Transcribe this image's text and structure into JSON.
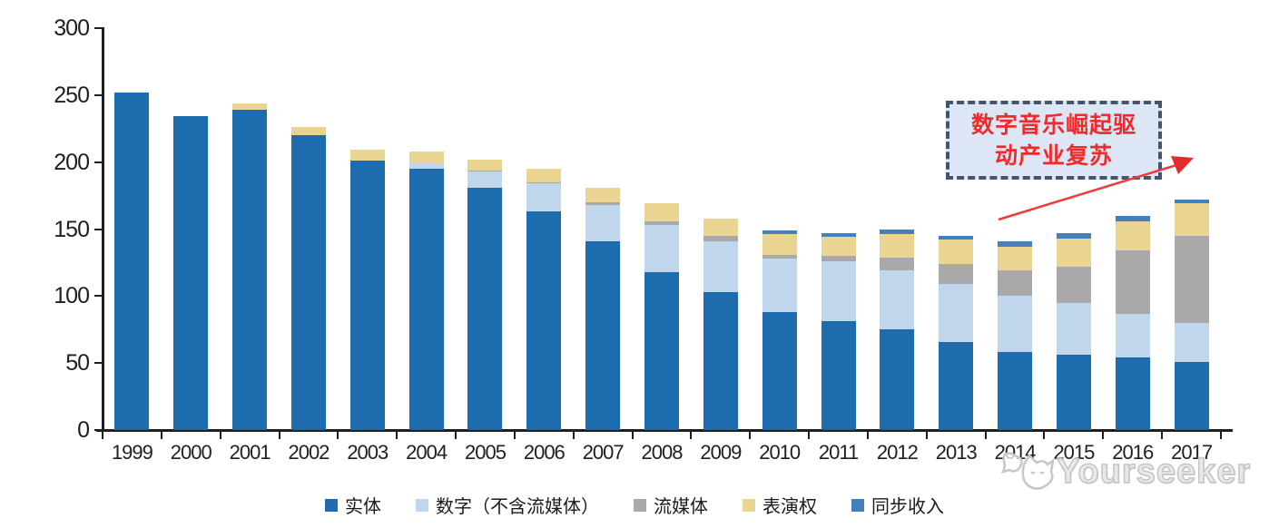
{
  "chart_data": {
    "type": "bar",
    "stacked": true,
    "title": "",
    "xlabel": "",
    "ylabel": "",
    "ylim": [
      0,
      300
    ],
    "y_ticks": [
      0,
      50,
      100,
      150,
      200,
      250,
      300
    ],
    "grid": false,
    "legend_position": "bottom",
    "categories": [
      "1999",
      "2000",
      "2001",
      "2002",
      "2003",
      "2004",
      "2005",
      "2006",
      "2007",
      "2008",
      "2009",
      "2010",
      "2011",
      "2012",
      "2013",
      "2014",
      "2015",
      "2016",
      "2017"
    ],
    "series": [
      {
        "name": "实体",
        "color": "#1D6CAE",
        "values": [
          252,
          234,
          239,
          220,
          201,
          195,
          181,
          163,
          141,
          118,
          103,
          88,
          81,
          75,
          66,
          58,
          56,
          54,
          51
        ]
      },
      {
        "name": "数字（不含流媒体）",
        "color": "#BFD6ED",
        "values": [
          0,
          0,
          0,
          0,
          0,
          4,
          12,
          21,
          27,
          35,
          38,
          40,
          45,
          44,
          43,
          42,
          39,
          33,
          29
        ]
      },
      {
        "name": "流媒体",
        "color": "#A9A9A9",
        "values": [
          0,
          0,
          0,
          0,
          0,
          0,
          1,
          1,
          2,
          3,
          4,
          3,
          4,
          10,
          15,
          19,
          27,
          47,
          65
        ]
      },
      {
        "name": "表演权",
        "color": "#E9D492",
        "values": [
          0,
          0,
          5,
          6,
          8,
          9,
          8,
          10,
          11,
          13,
          13,
          15,
          14,
          17,
          18,
          18,
          21,
          22,
          24
        ]
      },
      {
        "name": "同步收入",
        "color": "#4380BE",
        "values": [
          0,
          0,
          0,
          0,
          0,
          0,
          0,
          0,
          0,
          0,
          0,
          3,
          3,
          4,
          3,
          4,
          4,
          4,
          3
        ]
      }
    ]
  },
  "annotation": {
    "line1": "数字音乐崛起驱",
    "line2": "动产业复苏",
    "text_color": "#F02B2B",
    "border_color": "#44546A",
    "fill_color": "#DCE6F4",
    "arrow_color": "#EF3B3B"
  },
  "watermark": {
    "text": "Yourseeker"
  },
  "colors": {
    "axis": "#1f1f1f",
    "background": "#ffffff"
  }
}
